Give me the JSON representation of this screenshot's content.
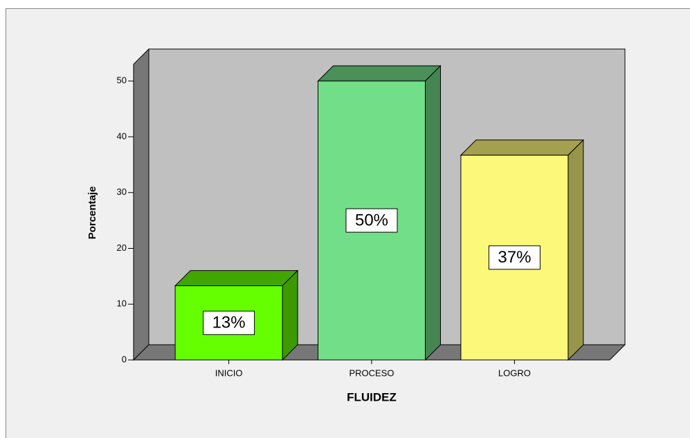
{
  "chart_data": {
    "type": "bar3d",
    "categories": [
      "INICIO",
      "PROCESO",
      "LOGRO"
    ],
    "values": [
      13.3,
      50,
      36.7
    ],
    "value_labels": [
      "13%",
      "50%",
      "37%"
    ],
    "colors": [
      "#66ff00",
      "#72de88",
      "#fbf87a"
    ],
    "x_label": "FLUIDEZ",
    "y_label": "Porcentaje",
    "ylim": [
      0,
      53
    ],
    "yticks": [
      0,
      10,
      20,
      30,
      40,
      50
    ]
  }
}
